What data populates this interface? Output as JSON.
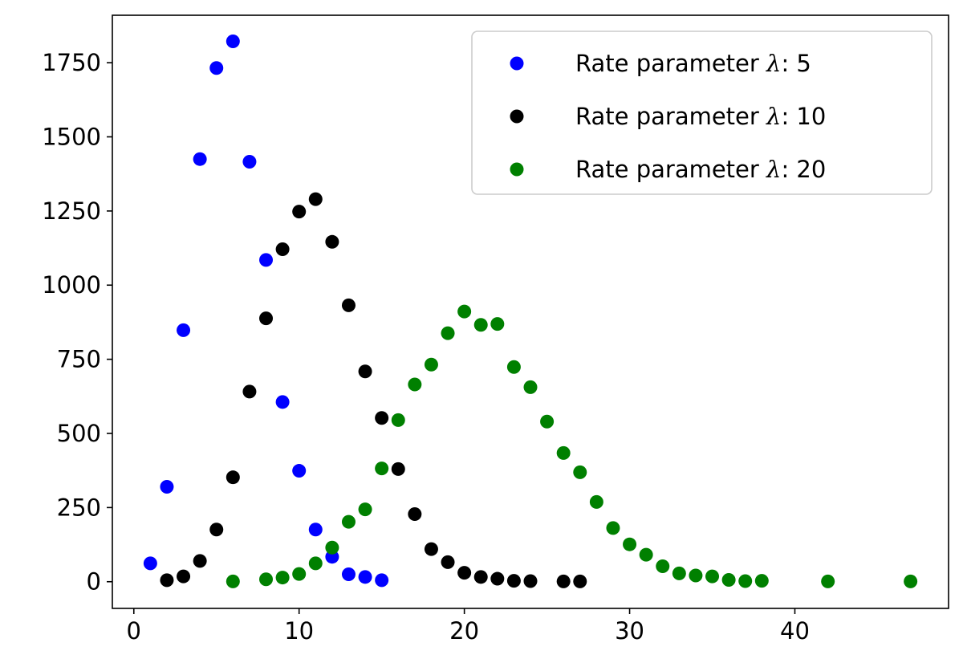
{
  "chart_data": {
    "type": "scatter",
    "title": "",
    "xlabel": "",
    "ylabel": "",
    "xlim": [
      -1.3,
      49.3
    ],
    "ylim": [
      -90,
      1910
    ],
    "xticks": [
      0,
      10,
      20,
      30,
      40
    ],
    "yticks": [
      0,
      250,
      500,
      750,
      1000,
      1250,
      1500,
      1750
    ],
    "grid": false,
    "legend_position": "top-right",
    "series": [
      {
        "name": "Rate parameter λ: 5",
        "legend_prefix": "Rate parameter ",
        "legend_symbol": "λ",
        "legend_suffix": ": 5",
        "color": "#0000ff",
        "points": [
          [
            1,
            62
          ],
          [
            2,
            320
          ],
          [
            3,
            848
          ],
          [
            4,
            1425
          ],
          [
            5,
            1732
          ],
          [
            6,
            1822
          ],
          [
            7,
            1416
          ],
          [
            8,
            1085
          ],
          [
            9,
            606
          ],
          [
            10,
            374
          ],
          [
            11,
            176
          ],
          [
            12,
            84
          ],
          [
            13,
            25
          ],
          [
            14,
            16
          ],
          [
            15,
            5
          ]
        ]
      },
      {
        "name": "Rate parameter λ: 10",
        "legend_prefix": "Rate parameter ",
        "legend_symbol": "λ",
        "legend_suffix": ": 10",
        "color": "#000000",
        "points": [
          [
            2,
            5
          ],
          [
            3,
            18
          ],
          [
            4,
            70
          ],
          [
            5,
            176
          ],
          [
            6,
            352
          ],
          [
            7,
            641
          ],
          [
            8,
            888
          ],
          [
            9,
            1121
          ],
          [
            10,
            1248
          ],
          [
            11,
            1290
          ],
          [
            12,
            1146
          ],
          [
            13,
            932
          ],
          [
            14,
            709
          ],
          [
            15,
            552
          ],
          [
            16,
            380
          ],
          [
            17,
            228
          ],
          [
            18,
            110
          ],
          [
            19,
            66
          ],
          [
            20,
            30
          ],
          [
            21,
            16
          ],
          [
            22,
            10
          ],
          [
            23,
            3
          ],
          [
            24,
            2
          ],
          [
            26,
            1
          ],
          [
            27,
            1
          ]
        ]
      },
      {
        "name": "Rate parameter λ: 20",
        "legend_prefix": "Rate parameter ",
        "legend_symbol": "λ",
        "legend_suffix": ": 20",
        "color": "#008000",
        "points": [
          [
            6,
            1
          ],
          [
            8,
            8
          ],
          [
            9,
            14
          ],
          [
            10,
            26
          ],
          [
            11,
            62
          ],
          [
            12,
            115
          ],
          [
            13,
            202
          ],
          [
            14,
            244
          ],
          [
            15,
            382
          ],
          [
            16,
            545
          ],
          [
            17,
            665
          ],
          [
            18,
            732
          ],
          [
            19,
            838
          ],
          [
            20,
            911
          ],
          [
            21,
            866
          ],
          [
            22,
            869
          ],
          [
            23,
            724
          ],
          [
            24,
            656
          ],
          [
            25,
            540
          ],
          [
            26,
            434
          ],
          [
            27,
            369
          ],
          [
            28,
            269
          ],
          [
            29,
            181
          ],
          [
            30,
            126
          ],
          [
            31,
            91
          ],
          [
            32,
            52
          ],
          [
            33,
            28
          ],
          [
            34,
            21
          ],
          [
            35,
            18
          ],
          [
            36,
            6
          ],
          [
            37,
            2
          ],
          [
            38,
            3
          ],
          [
            42,
            1
          ],
          [
            47,
            1
          ]
        ]
      }
    ]
  }
}
